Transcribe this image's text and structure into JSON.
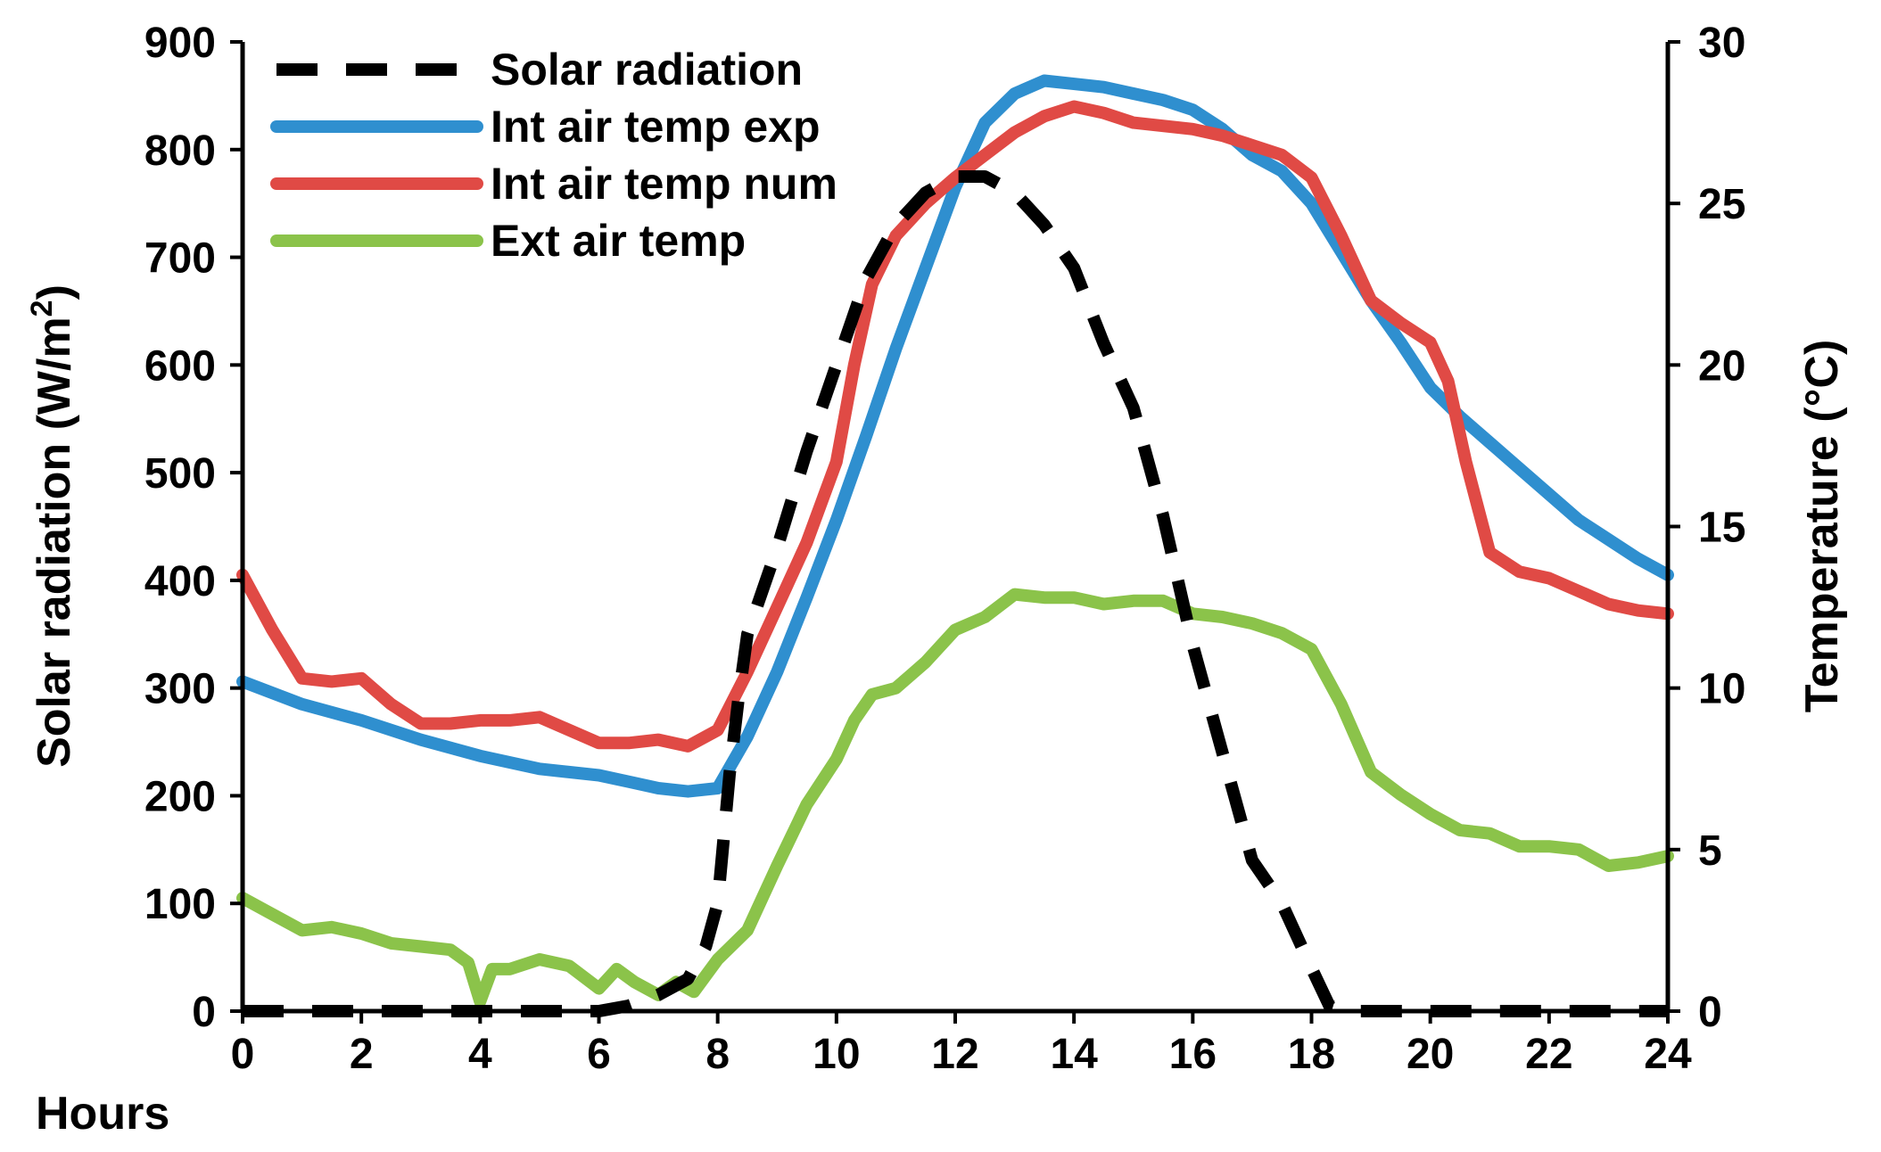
{
  "chart_data": {
    "type": "line",
    "title": "",
    "xlabel": "Hours",
    "ylabel_left": "Solar radiation (W/m",
    "ylabel_left_sup": "2",
    "ylabel_left_end": ")",
    "ylabel_right": "Temperature (°C)",
    "xlim": [
      0,
      24
    ],
    "ylim_left": [
      0,
      900
    ],
    "ylim_right": [
      0,
      30
    ],
    "x_ticks": [
      "0",
      "2",
      "4",
      "6",
      "8",
      "10",
      "12",
      "14",
      "16",
      "18",
      "20",
      "22",
      "24"
    ],
    "y_left_ticks": [
      "0",
      "100",
      "200",
      "300",
      "400",
      "500",
      "600",
      "700",
      "800",
      "900"
    ],
    "y_right_ticks": [
      "0",
      "5",
      "10",
      "15",
      "20",
      "25",
      "30"
    ],
    "grid": false,
    "legend_position": "top-left",
    "series": [
      {
        "name": "Solar radiation",
        "axis": "left",
        "color": "#000000",
        "style": "dashed",
        "x": [
          0,
          1,
          2,
          3,
          4,
          5,
          6,
          6.5,
          7,
          7.5,
          7.8,
          8.0,
          8.2,
          8.35,
          8.5,
          9,
          9.5,
          10,
          10.5,
          11,
          11.5,
          12,
          12.5,
          13,
          13.5,
          14,
          14.5,
          15,
          15.5,
          16,
          16.5,
          17,
          17.5,
          18,
          18.3,
          18.6,
          19,
          20,
          21,
          22,
          23,
          24
        ],
        "values": [
          0,
          0,
          0,
          0,
          0,
          0,
          0,
          5,
          15,
          30,
          60,
          100,
          220,
          290,
          350,
          430,
          520,
          600,
          680,
          730,
          760,
          775,
          775,
          760,
          730,
          690,
          620,
          560,
          460,
          340,
          240,
          140,
          100,
          40,
          5,
          0,
          0,
          0,
          0,
          0,
          0,
          0
        ]
      },
      {
        "name": "Int air temp exp",
        "axis": "right",
        "color": "#2F8FCF",
        "style": "solid",
        "x": [
          0,
          1,
          2,
          3,
          4,
          5,
          6,
          6.5,
          7,
          7.5,
          8,
          8.5,
          9,
          9.5,
          10,
          10.5,
          11,
          11.5,
          12,
          12.5,
          13,
          13.5,
          14,
          14.5,
          15,
          15.5,
          16,
          16.5,
          17,
          17.5,
          18,
          18.5,
          19,
          19.5,
          20,
          20.5,
          21,
          21.5,
          22,
          22.5,
          23,
          23.5,
          24
        ],
        "values": [
          10.2,
          9.5,
          9.0,
          8.4,
          7.9,
          7.5,
          7.3,
          7.1,
          6.9,
          6.8,
          6.9,
          8.5,
          10.5,
          12.8,
          15.2,
          17.8,
          20.5,
          23.0,
          25.5,
          27.5,
          28.4,
          28.8,
          28.7,
          28.6,
          28.4,
          28.2,
          27.9,
          27.3,
          26.5,
          26.0,
          25.0,
          23.5,
          22.0,
          20.7,
          19.3,
          18.4,
          17.6,
          16.8,
          16.0,
          15.2,
          14.6,
          14.0,
          13.5
        ]
      },
      {
        "name": "Int air temp num",
        "axis": "right",
        "color": "#E04A45",
        "style": "solid",
        "x": [
          0,
          0.5,
          1,
          1.5,
          2,
          2.5,
          3,
          3.5,
          4,
          4.5,
          5,
          5.5,
          6,
          6.5,
          7,
          7.5,
          8,
          8.5,
          9,
          9.5,
          10,
          10.3,
          10.6,
          11,
          11.5,
          12,
          12.5,
          13,
          13.5,
          14,
          14.5,
          15,
          15.5,
          16,
          16.5,
          17,
          17.5,
          18,
          18.5,
          19,
          19.5,
          20,
          20.3,
          20.6,
          21,
          21.5,
          22,
          22.5,
          23,
          23.5,
          24
        ],
        "values": [
          13.5,
          11.8,
          10.3,
          10.2,
          10.3,
          9.5,
          8.9,
          8.9,
          9.0,
          9.0,
          9.1,
          8.7,
          8.3,
          8.3,
          8.4,
          8.2,
          8.7,
          10.5,
          12.5,
          14.5,
          17.0,
          20.0,
          22.5,
          24.0,
          25.0,
          25.8,
          26.5,
          27.2,
          27.7,
          28.0,
          27.8,
          27.5,
          27.4,
          27.3,
          27.1,
          26.8,
          26.5,
          25.8,
          24.0,
          22.0,
          21.3,
          20.7,
          19.5,
          17.0,
          14.2,
          13.6,
          13.4,
          13.0,
          12.6,
          12.4,
          12.3
        ]
      },
      {
        "name": "Ext air temp",
        "axis": "right",
        "color": "#8BC34A",
        "style": "solid",
        "x": [
          0,
          0.5,
          1,
          1.5,
          2,
          2.5,
          3,
          3.5,
          3.8,
          4,
          4.2,
          4.5,
          5,
          5.5,
          6,
          6.3,
          6.6,
          7,
          7.3,
          7.6,
          8,
          8.5,
          9,
          9.5,
          10,
          10.3,
          10.6,
          11,
          11.5,
          12,
          12.5,
          13,
          13.5,
          14,
          14.5,
          15,
          15.5,
          16,
          16.5,
          17,
          17.5,
          18,
          18.5,
          19,
          19.5,
          20,
          20.5,
          21,
          21.5,
          22,
          22.5,
          23,
          23.5,
          24
        ],
        "values": [
          3.5,
          3.0,
          2.5,
          2.6,
          2.4,
          2.1,
          2.0,
          1.9,
          1.5,
          0.3,
          1.3,
          1.3,
          1.6,
          1.4,
          0.7,
          1.3,
          0.9,
          0.5,
          0.9,
          0.6,
          1.6,
          2.5,
          4.5,
          6.4,
          7.8,
          9.0,
          9.8,
          10.0,
          10.8,
          11.8,
          12.2,
          12.9,
          12.8,
          12.8,
          12.6,
          12.7,
          12.7,
          12.3,
          12.2,
          12.0,
          11.7,
          11.2,
          9.5,
          7.4,
          6.7,
          6.1,
          5.6,
          5.5,
          5.1,
          5.1,
          5.0,
          4.5,
          4.6,
          4.8
        ]
      }
    ]
  }
}
